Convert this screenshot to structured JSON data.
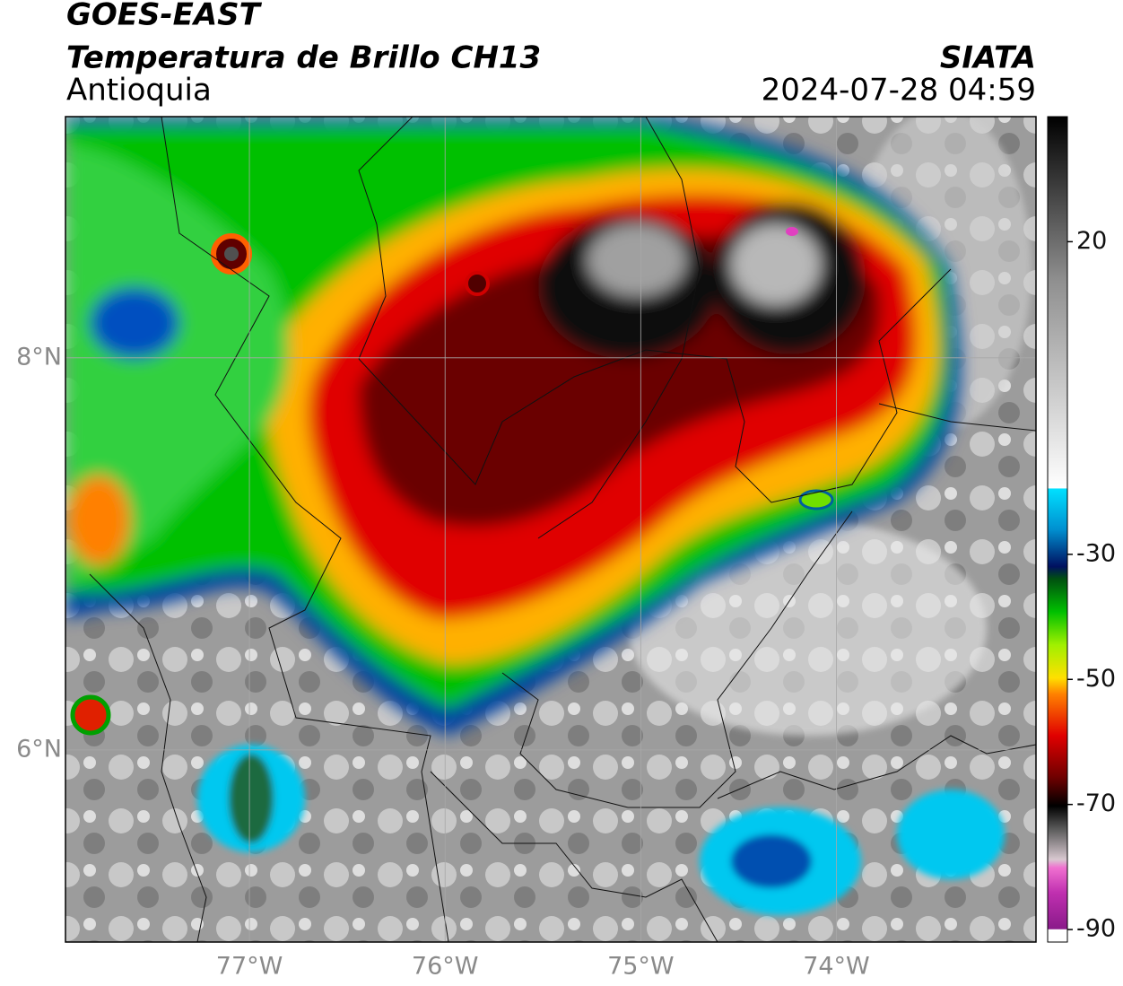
{
  "header": {
    "title": "GOES-EAST",
    "subtitle": "Temperatura de Brillo CH13",
    "region": "Antioquia",
    "source": "SIATA",
    "datetime": "2024-07-28 04:59"
  },
  "map": {
    "xlim": [
      -77.94,
      -72.98
    ],
    "ylim": [
      5.02,
      9.23
    ],
    "xticks": [
      {
        "value": -77,
        "label": "77°W"
      },
      {
        "value": -76,
        "label": "76°W"
      },
      {
        "value": -75,
        "label": "75°W"
      },
      {
        "value": -74,
        "label": "74°W"
      }
    ],
    "yticks": [
      {
        "value": 6,
        "label": "6°N"
      },
      {
        "value": 8,
        "label": "8°N"
      }
    ],
    "grid": true
  },
  "colorbar": {
    "lim": [
      -92,
      40
    ],
    "ticks": [
      -90,
      -70,
      -50,
      -30,
      20
    ]
  }
}
